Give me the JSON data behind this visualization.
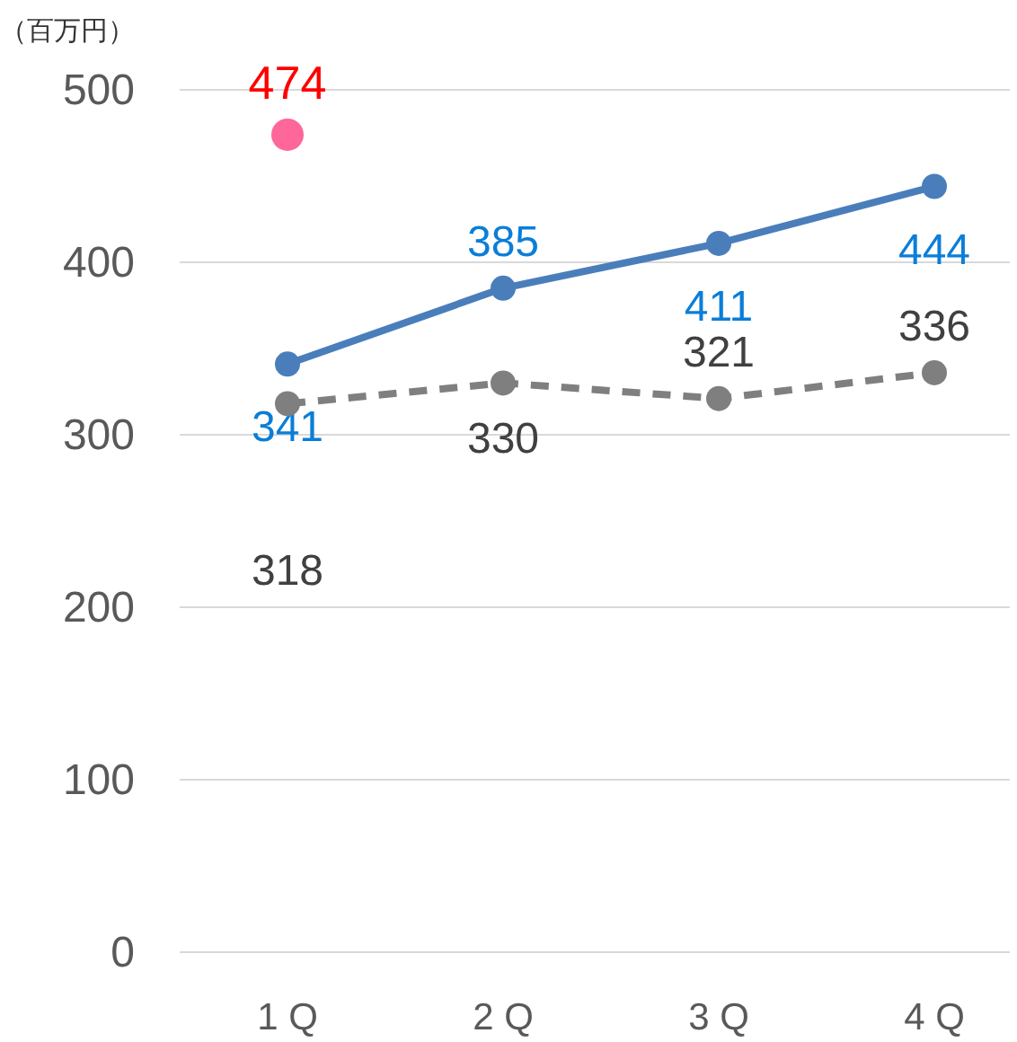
{
  "chart_data": {
    "type": "line",
    "ylabel": "（百万円）",
    "categories": [
      "1 Q",
      "2 Q",
      "3 Q",
      "4 Q"
    ],
    "series": [
      {
        "color": "#4a7ebb",
        "values": [
          341,
          385,
          411,
          444
        ],
        "line_style": "solid"
      },
      {
        "color": "#7f7f7f",
        "values": [
          318,
          330,
          321,
          336
        ],
        "line_style": "dashed"
      },
      {
        "type": "scatter",
        "x": [
          "1 Q"
        ],
        "color": "#ff6699",
        "values": [
          474
        ]
      }
    ],
    "ylim": [
      0,
      500
    ],
    "yticks": [
      0,
      100,
      200,
      300,
      400,
      500
    ],
    "grid": "y",
    "marker": "circle",
    "data_labels": true
  }
}
